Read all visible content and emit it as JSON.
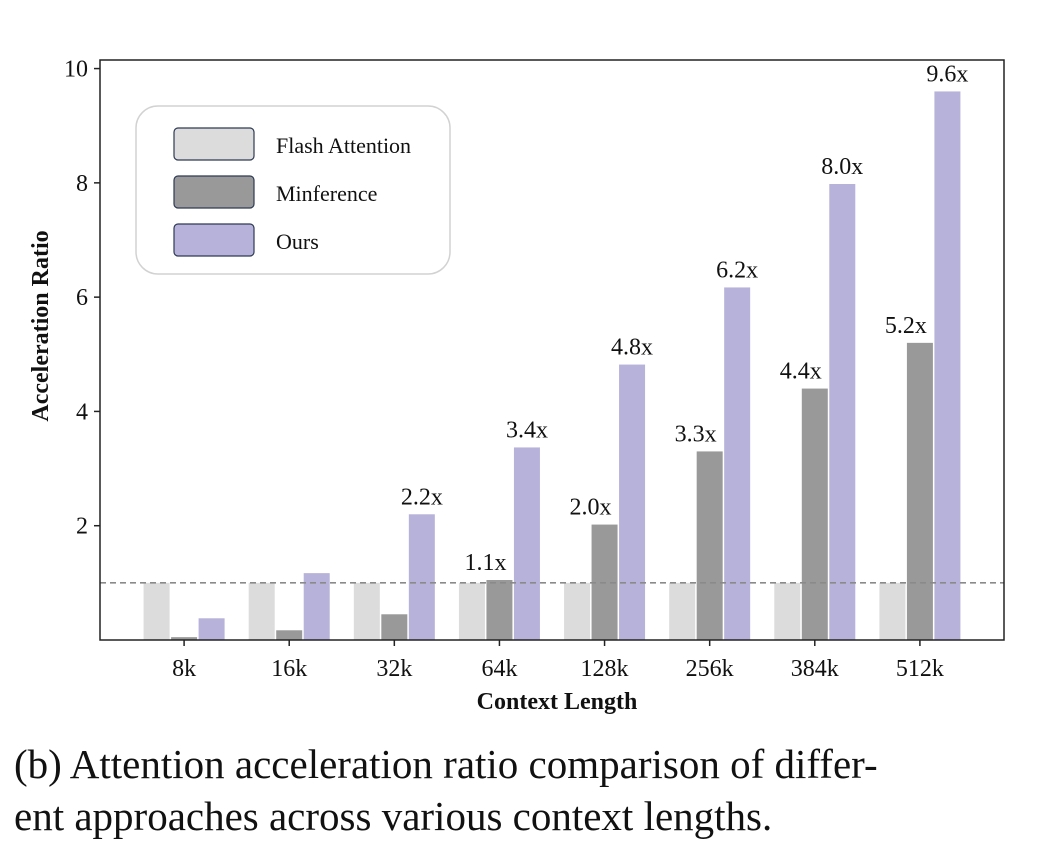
{
  "chart_data": {
    "type": "bar",
    "xlabel": "Context Length",
    "ylabel": "Acceleration Ratio",
    "categories": [
      "8k",
      "16k",
      "32k",
      "64k",
      "128k",
      "256k",
      "384k",
      "512k"
    ],
    "ylim": [
      0,
      10.15
    ],
    "yticks": [
      2,
      4,
      6,
      8,
      10
    ],
    "grid": false,
    "legend_position": "top-left",
    "reference_line": {
      "y": 1.0,
      "style": "dashed"
    },
    "series": [
      {
        "name": "Flash Attention",
        "color": "#dcdcdc",
        "values": [
          1.0,
          1.0,
          1.0,
          1.0,
          1.0,
          1.0,
          1.0,
          1.0
        ]
      },
      {
        "name": "Minference",
        "color": "#999999",
        "values": [
          0.05,
          0.17,
          0.45,
          1.05,
          2.02,
          3.3,
          4.4,
          5.2
        ]
      },
      {
        "name": "Ours",
        "color": "#b7b2d9",
        "values": [
          0.38,
          1.17,
          2.2,
          3.37,
          4.82,
          6.17,
          7.98,
          9.6
        ]
      }
    ],
    "annotations": [
      {
        "series": "Ours",
        "category": "32k",
        "text": "2.2x"
      },
      {
        "series": "Minference",
        "category": "64k",
        "text": "1.1x"
      },
      {
        "series": "Ours",
        "category": "64k",
        "text": "3.4x"
      },
      {
        "series": "Minference",
        "category": "128k",
        "text": "2.0x"
      },
      {
        "series": "Ours",
        "category": "128k",
        "text": "4.8x"
      },
      {
        "series": "Minference",
        "category": "256k",
        "text": "3.3x"
      },
      {
        "series": "Ours",
        "category": "256k",
        "text": "6.2x"
      },
      {
        "series": "Minference",
        "category": "384k",
        "text": "4.4x"
      },
      {
        "series": "Ours",
        "category": "384k",
        "text": "8.0x"
      },
      {
        "series": "Minference",
        "category": "512k",
        "text": "5.2x"
      },
      {
        "series": "Ours",
        "category": "512k",
        "text": "9.6x"
      }
    ]
  },
  "caption": {
    "line1": "(b) Attention acceleration ratio comparison of differ-",
    "line2": "ent approaches across various context lengths."
  }
}
